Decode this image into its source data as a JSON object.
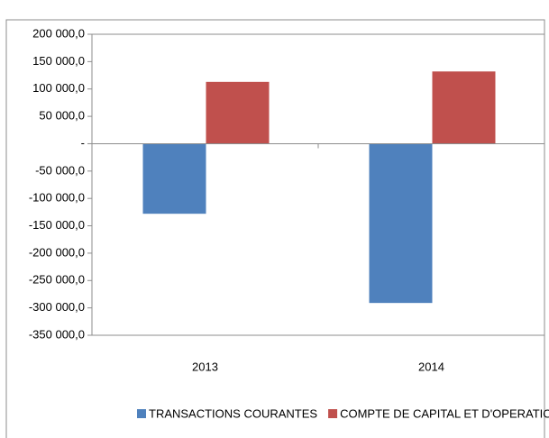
{
  "chart_data": {
    "type": "bar",
    "categories": [
      "2013",
      "2014"
    ],
    "series": [
      {
        "name": "TRANSACTIONS COURANTES",
        "color": "#4f81bd",
        "values": [
          -128000,
          -291000
        ]
      },
      {
        "name": "COMPTE DE CAPITAL ET D'OPERATIONS FINANCIERES",
        "color": "#c0504d",
        "values": [
          113000,
          132000
        ]
      }
    ],
    "ylim": [
      -350000,
      200000
    ],
    "yticks": [
      {
        "value": 200000,
        "label": "200 000,0"
      },
      {
        "value": 150000,
        "label": "150 000,0"
      },
      {
        "value": 100000,
        "label": "100 000,0"
      },
      {
        "value": 50000,
        "label": "50 000,0"
      },
      {
        "value": 0,
        "label": "-"
      },
      {
        "value": -50000,
        "label": "-50 000,0"
      },
      {
        "value": -100000,
        "label": "-100 000,0"
      },
      {
        "value": -150000,
        "label": "-150 000,0"
      },
      {
        "value": -200000,
        "label": "-200 000,0"
      },
      {
        "value": -250000,
        "label": "-250 000,0"
      },
      {
        "value": -300000,
        "label": "-300 000,0"
      },
      {
        "value": -350000,
        "label": "-350 000,0"
      }
    ],
    "legend": "bottom"
  }
}
